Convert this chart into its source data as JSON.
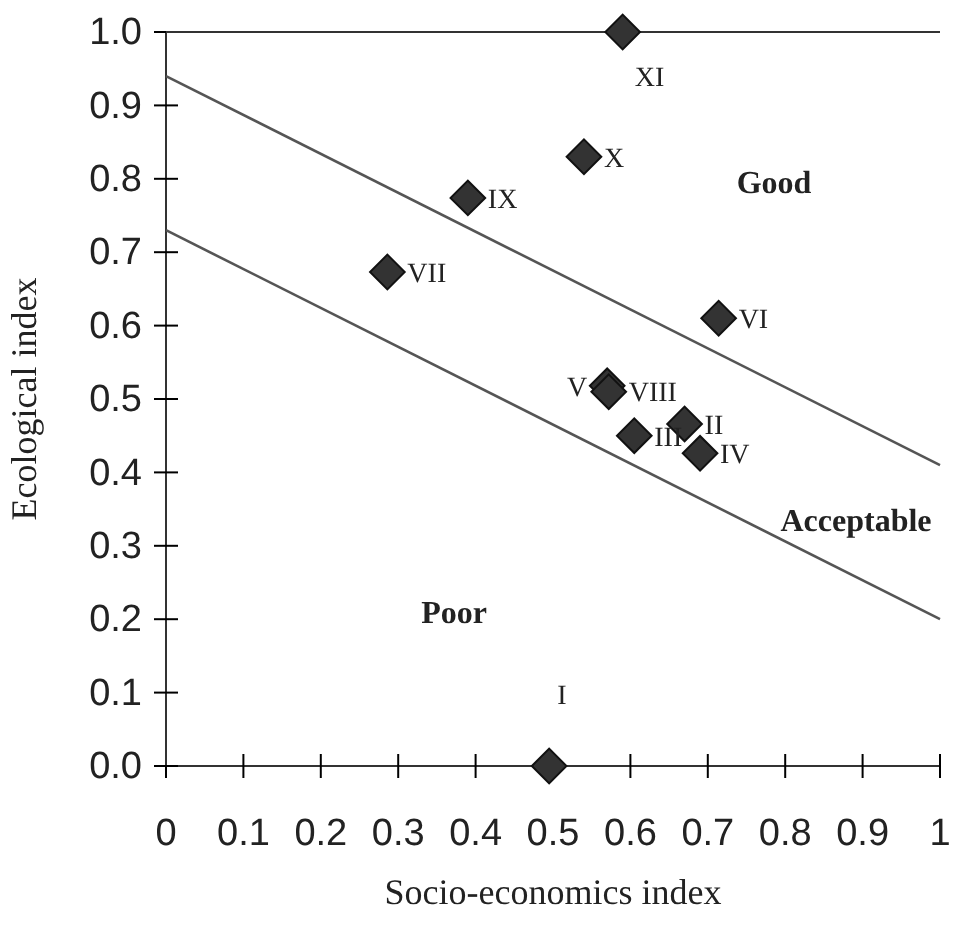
{
  "chart_data": {
    "type": "scatter",
    "xlabel": "Socio-economics index",
    "ylabel": "Ecological index",
    "xlim": [
      0,
      1
    ],
    "ylim": [
      0,
      1
    ],
    "xticks": [
      0,
      0.1,
      0.2,
      0.3,
      0.4,
      0.5,
      0.6,
      0.7,
      0.8,
      0.9,
      1
    ],
    "yticks": [
      {
        "value": 0,
        "label": "0.0"
      },
      0.1,
      0.2,
      0.3,
      0.4,
      0.5,
      0.6,
      0.7,
      0.8,
      0.9,
      {
        "value": 1,
        "label": "1.0"
      }
    ],
    "grid": false,
    "marker": "diamond",
    "series": [
      {
        "color": "#333333",
        "x": [
          0.495,
          0.67,
          0.605,
          0.69,
          0.57,
          0.714,
          0.286,
          0.572,
          0.39,
          0.54,
          0.59
        ],
        "values": [
          0,
          0.466,
          0.45,
          0.426,
          0.518,
          0.61,
          0.673,
          0.51,
          0.774,
          0.83,
          1
        ],
        "value_labels": [
          "I",
          "II",
          "III",
          "IV",
          "V",
          "VI",
          "VII",
          "VIII",
          "IX",
          "X",
          "XI"
        ]
      },
      {
        "type": "line",
        "color": "#555555",
        "line_style": "solid",
        "marker": "none",
        "x": [
          0,
          1
        ],
        "values": [
          0.94,
          0.41
        ]
      },
      {
        "type": "line",
        "color": "#555555",
        "line_style": "solid",
        "marker": "none",
        "x": [
          0,
          1
        ],
        "values": [
          0.73,
          0.2
        ]
      }
    ],
    "annotations": [
      "Good",
      "Acceptable",
      "Poor"
    ]
  }
}
